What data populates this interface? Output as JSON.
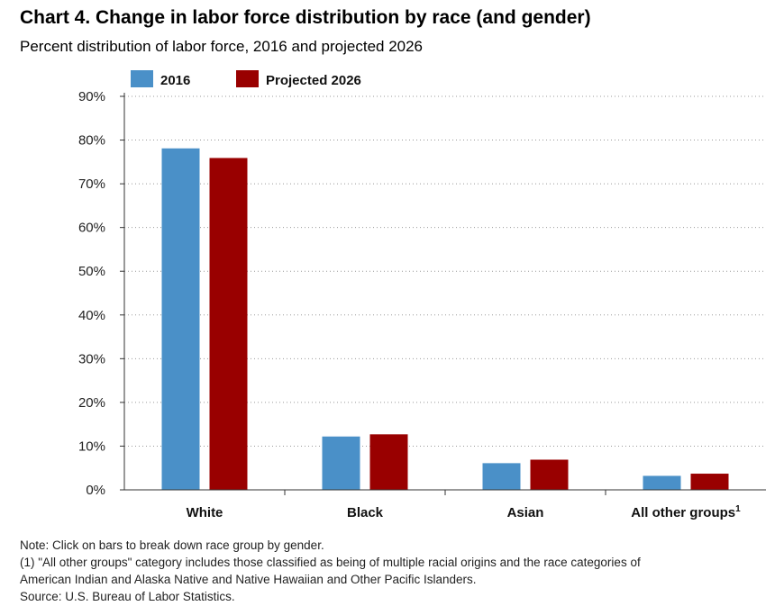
{
  "title": "Chart 4. Change in labor force distribution by race (and gender)",
  "subtitle": "Percent distribution of labor force, 2016 and projected 2026",
  "chart_data": {
    "type": "bar",
    "categories": [
      "White",
      "Black",
      "Asian",
      "All other groups"
    ],
    "category_superscripts": [
      "",
      "",
      "",
      "1"
    ],
    "series": [
      {
        "name": "2016",
        "color": "#4a90c8",
        "values": [
          78.1,
          12.2,
          6.1,
          3.2
        ]
      },
      {
        "name": "Projected 2026",
        "color": "#990000",
        "values": [
          75.9,
          12.7,
          6.9,
          3.7
        ]
      }
    ],
    "y_ticks": [
      "0%",
      "10%",
      "20%",
      "30%",
      "40%",
      "50%",
      "60%",
      "70%",
      "80%",
      "90%"
    ],
    "ylim": [
      0,
      90
    ],
    "grid": true,
    "legend_position": "top-left"
  },
  "notes": [
    "Note: Click on bars to break down race group by gender.",
    "(1) \"All other groups\" category includes those classified as being of multiple racial origins and the race categories of",
    "American Indian and Alaska Native and Native Hawaiian and Other Pacific Islanders.",
    "Source: U.S. Bureau of Labor Statistics."
  ]
}
